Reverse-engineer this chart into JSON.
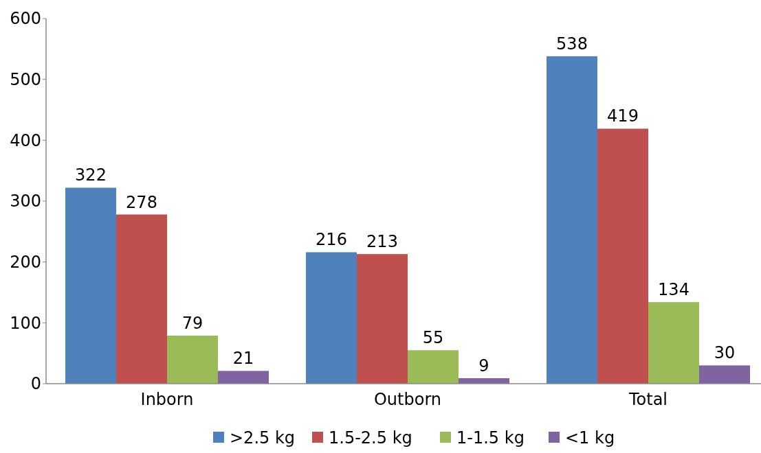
{
  "chart_data": {
    "type": "bar",
    "categories": [
      "Inborn",
      "Outborn",
      "Total"
    ],
    "series": [
      {
        "name": ">2.5 kg",
        "color": "#4f81bd",
        "values": [
          322,
          216,
          538
        ]
      },
      {
        "name": "1.5-2.5 kg",
        "color": "#c0504d",
        "values": [
          278,
          213,
          419
        ]
      },
      {
        "name": "1-1.5 kg",
        "color": "#9bbb59",
        "values": [
          79,
          55,
          134
        ]
      },
      {
        "name": "<1 kg",
        "color": "#8064a2",
        "values": [
          21,
          9,
          30
        ]
      }
    ],
    "ylim": [
      0,
      600
    ],
    "yticks": [
      0,
      100,
      200,
      300,
      400,
      500,
      600
    ],
    "data_labels": true,
    "legend": "bottom",
    "grid": false
  }
}
